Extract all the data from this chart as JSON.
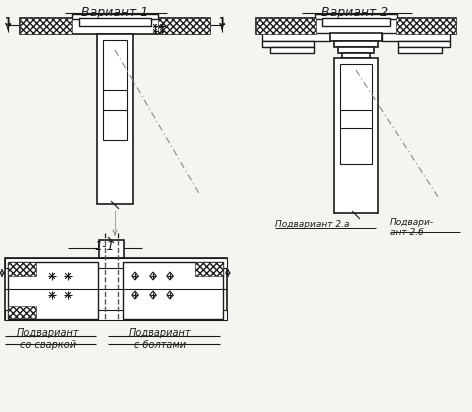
{
  "bg_color": "#f5f5f0",
  "lc": "#1a1a1a",
  "variant1_label": "Вариант 1",
  "variant2_label": "Вариант 2",
  "section_label": "1-1",
  "subvar2a_label": "Подвариант 2.а",
  "subvar2b_label": "Подвари-\nант 2.б",
  "subvar_weld_label": "Подвариант\nсо сваркой",
  "subvar_bolt_label": "Подвариант\nс болтами"
}
